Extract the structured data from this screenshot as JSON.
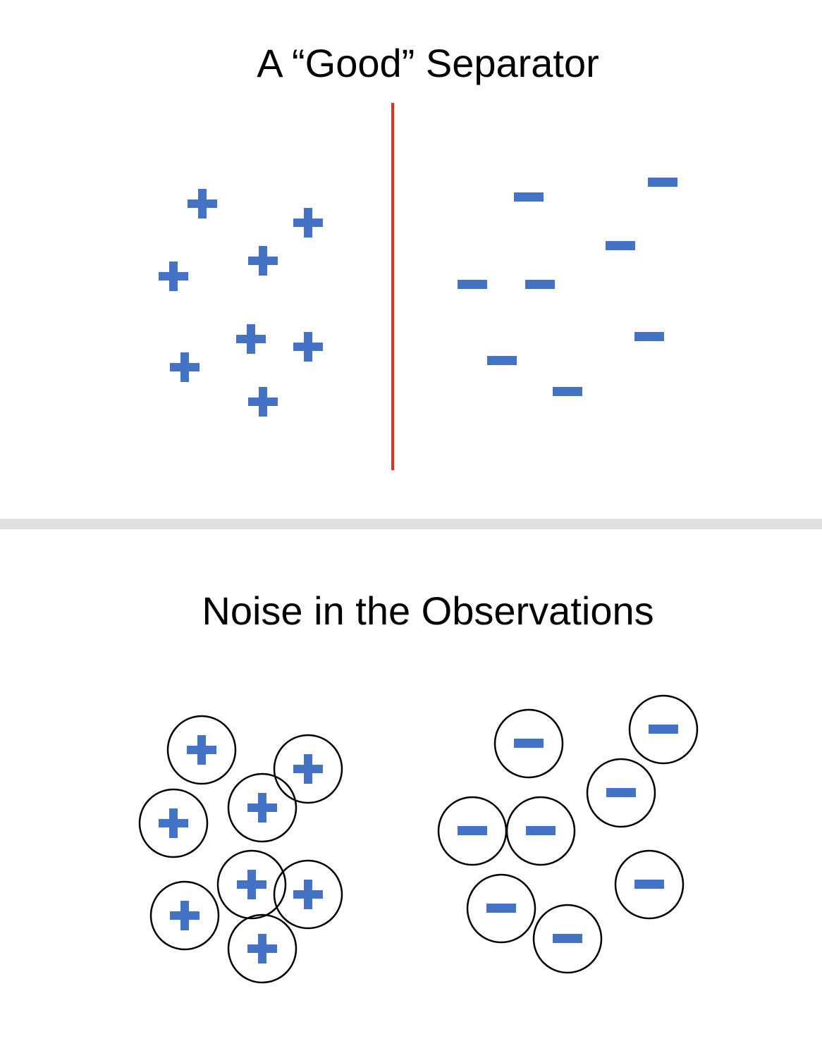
{
  "top_panel": {
    "title": "A “Good” Separator"
  },
  "bottom_panel": {
    "title": "Noise in the Observations"
  },
  "colors": {
    "marker": "#4472C4",
    "separator": "#E03024",
    "circle_stroke": "#000000",
    "divider": "#E0E0E0"
  },
  "markers": {
    "positive_symbol": "plus",
    "negative_symbol": "minus",
    "positive_count": 8,
    "negative_count": 8
  },
  "icons": {
    "positive": "plus-icon",
    "negative": "minus-icon",
    "noise": "circle-icon"
  }
}
